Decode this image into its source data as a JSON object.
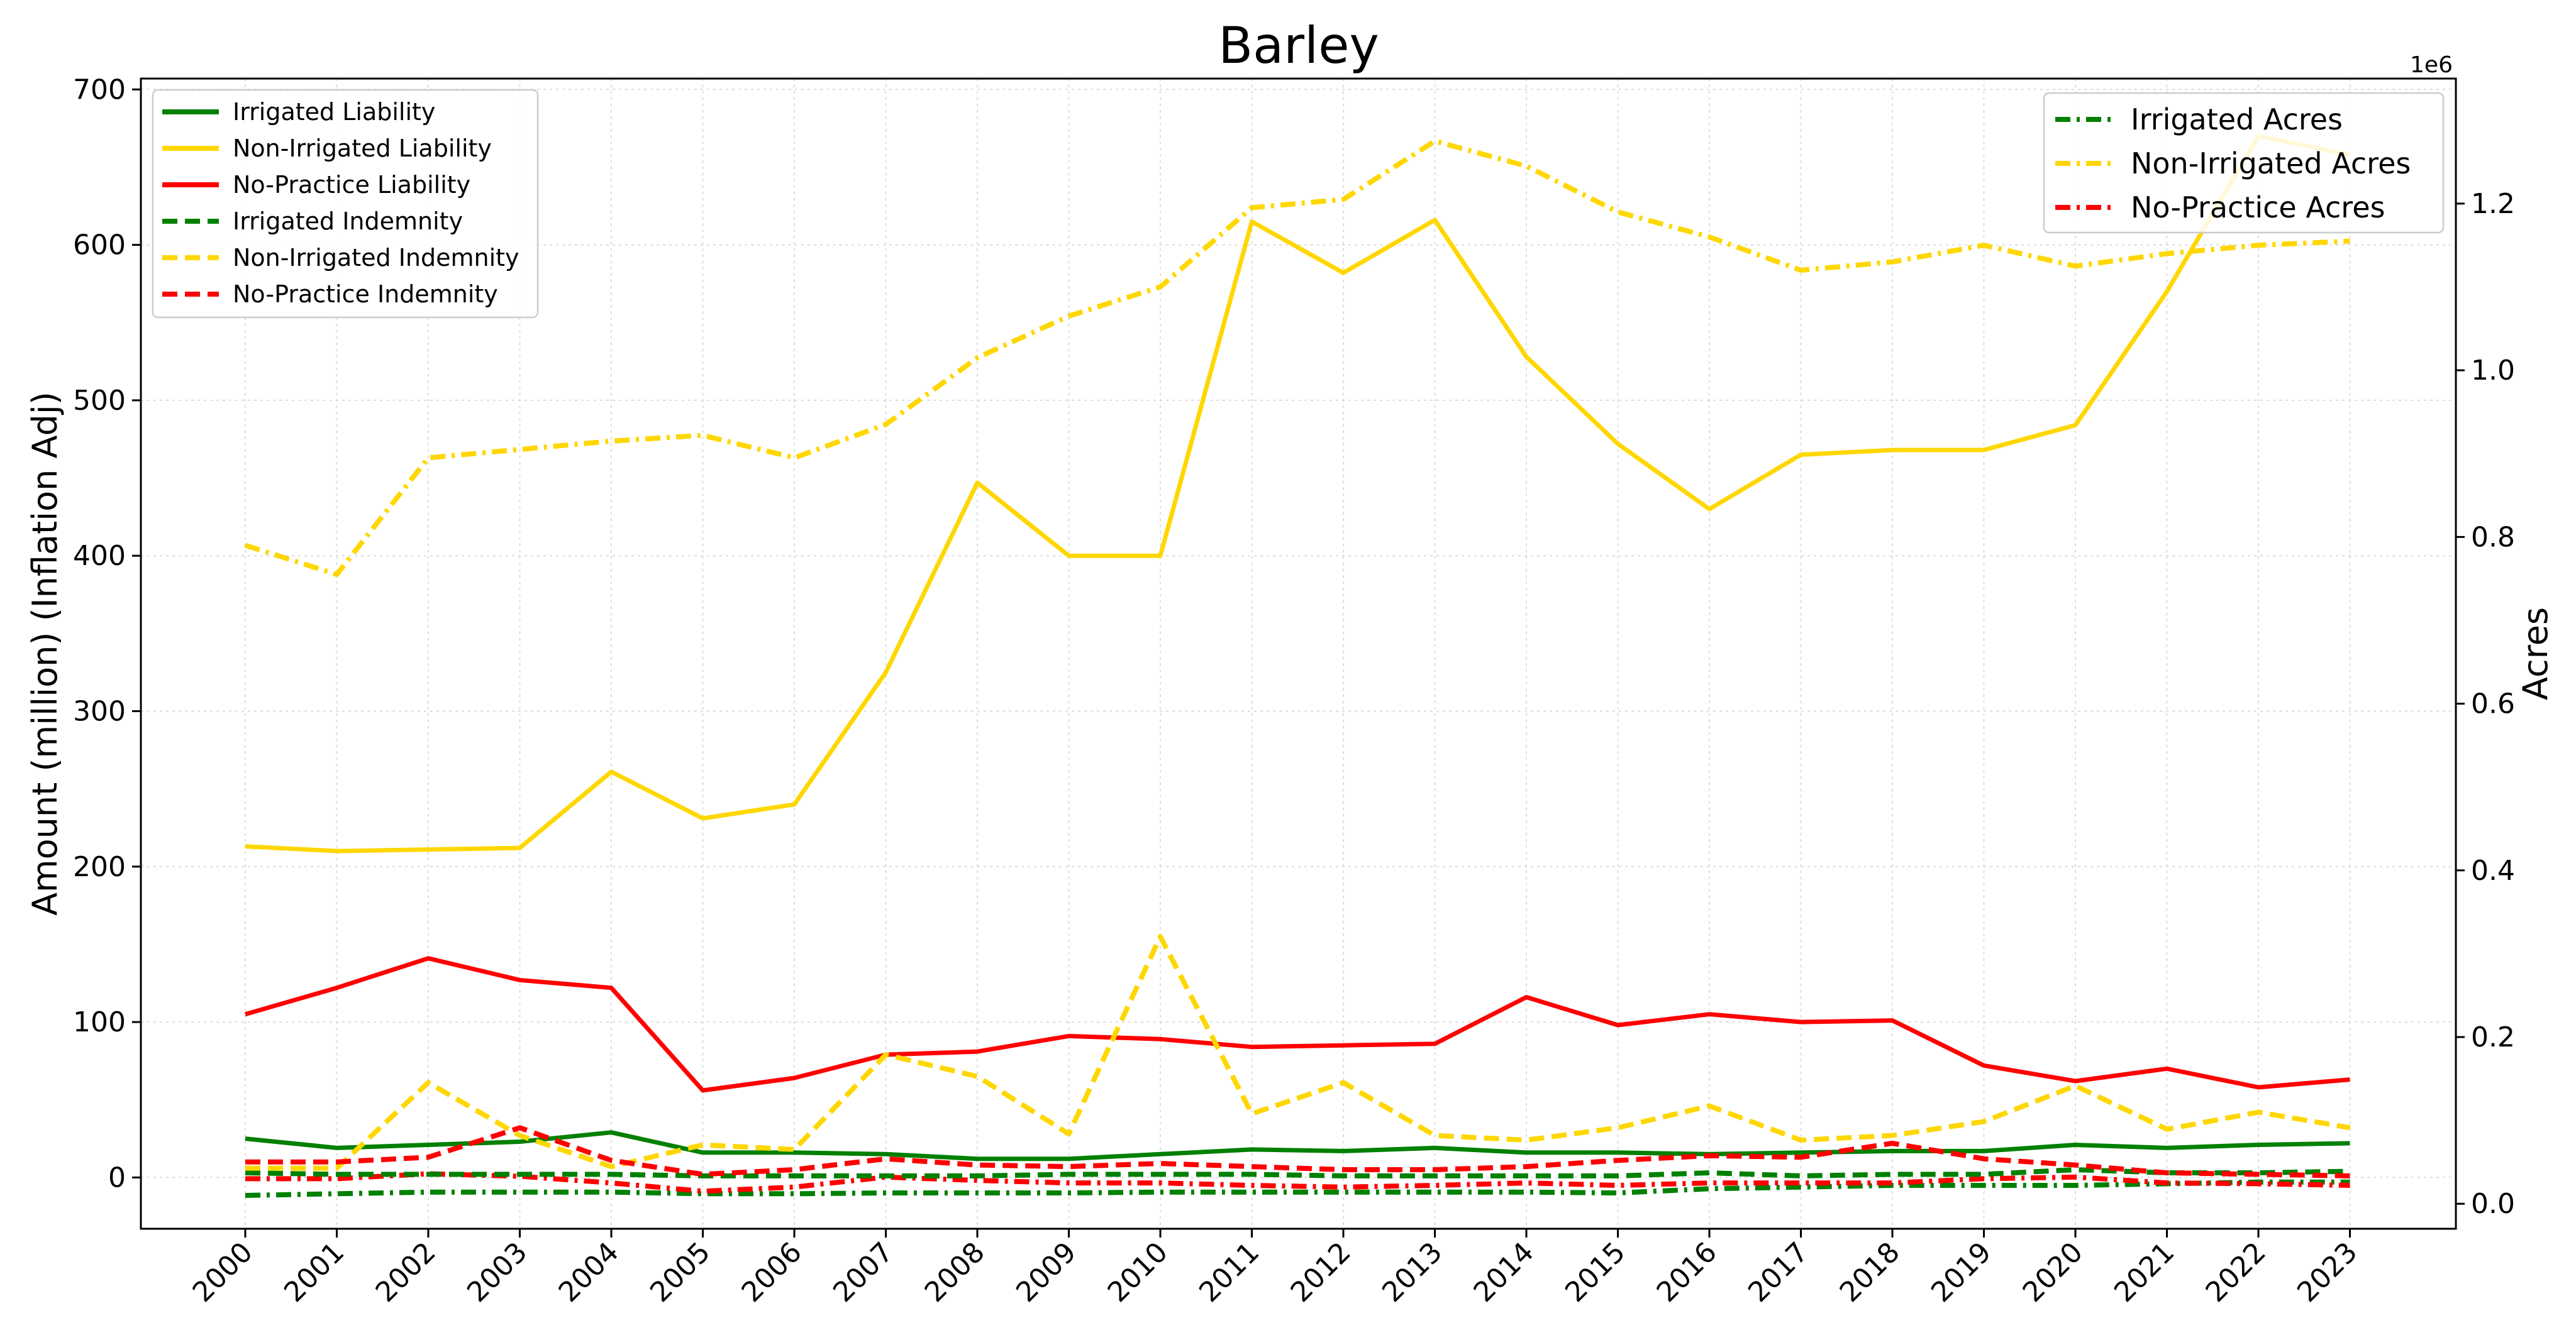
{
  "chart_data": {
    "type": "line",
    "title": "Barley",
    "xlabel": "",
    "ylabel": "Amount (million) (Inflation Adj)",
    "y2label": "Acres",
    "y2_offset_text": "1e6",
    "categories": [
      "2000",
      "2001",
      "2002",
      "2003",
      "2004",
      "2005",
      "2006",
      "2007",
      "2008",
      "2009",
      "2010",
      "2011",
      "2012",
      "2013",
      "2014",
      "2015",
      "2016",
      "2017",
      "2018",
      "2019",
      "2020",
      "2021",
      "2022",
      "2023"
    ],
    "ylim": [
      -33,
      707
    ],
    "y2lim": [
      -0.03,
      1.35
    ],
    "yticks": [
      0,
      100,
      200,
      300,
      400,
      500,
      600,
      700
    ],
    "y2ticks": [
      0.0,
      0.2,
      0.4,
      0.6,
      0.8,
      1.0,
      1.2
    ],
    "y2tick_labels": [
      "0.0",
      "0.2",
      "0.4",
      "0.6",
      "0.8",
      "1.0",
      "1.2"
    ],
    "grid": true,
    "legend_left_position": "upper-left",
    "legend_right_position": "upper-right",
    "series": [
      {
        "name": "Irrigated Liability",
        "axis": "left",
        "color": "#008000",
        "style": "solid",
        "values": [
          25,
          19,
          21,
          23,
          29,
          16,
          16,
          15,
          12,
          12,
          15,
          18,
          17,
          19,
          16,
          16,
          15,
          16,
          17,
          17,
          21,
          19,
          21,
          22
        ]
      },
      {
        "name": "Non-Irrigated Liability",
        "axis": "left",
        "color": "#FFD700",
        "style": "solid",
        "values": [
          213,
          210,
          211,
          212,
          261,
          231,
          240,
          325,
          447,
          400,
          400,
          615,
          582,
          616,
          528,
          472,
          430,
          465,
          468,
          468,
          484,
          570,
          670,
          658
        ]
      },
      {
        "name": "No-Practice Liability",
        "axis": "left",
        "color": "#FF0000",
        "style": "solid",
        "values": [
          105,
          122,
          141,
          127,
          122,
          56,
          64,
          79,
          81,
          91,
          89,
          84,
          85,
          86,
          116,
          98,
          105,
          100,
          101,
          72,
          62,
          70,
          58,
          63
        ]
      },
      {
        "name": "Irrigated Indemnity",
        "axis": "left",
        "color": "#008000",
        "style": "dashed",
        "values": [
          3,
          2,
          2,
          2,
          2,
          1,
          1,
          1,
          1,
          2,
          2,
          2,
          1,
          1,
          1,
          1,
          3,
          1,
          2,
          2,
          5,
          3,
          3,
          4
        ]
      },
      {
        "name": "Non-Irrigated Indemnity",
        "axis": "left",
        "color": "#FFD700",
        "style": "dashed",
        "values": [
          6,
          6,
          61,
          27,
          7,
          21,
          18,
          79,
          65,
          28,
          155,
          41,
          61,
          27,
          24,
          32,
          46,
          24,
          27,
          36,
          59,
          31,
          42,
          32
        ]
      },
      {
        "name": "No-Practice Indemnity",
        "axis": "left",
        "color": "#FF0000",
        "style": "dashed",
        "values": [
          10,
          10,
          13,
          32,
          11,
          2,
          5,
          12,
          8,
          7,
          9,
          7,
          5,
          5,
          7,
          11,
          14,
          13,
          22,
          12,
          8,
          3,
          2,
          1
        ]
      },
      {
        "name": "Irrigated Acres",
        "axis": "right",
        "color": "#008000",
        "style": "dashdot",
        "values": [
          0.01,
          0.012,
          0.014,
          0.014,
          0.014,
          0.012,
          0.012,
          0.013,
          0.013,
          0.013,
          0.014,
          0.014,
          0.014,
          0.014,
          0.014,
          0.013,
          0.018,
          0.02,
          0.022,
          0.022,
          0.022,
          0.024,
          0.026,
          0.026
        ]
      },
      {
        "name": "Non-Irrigated Acres",
        "axis": "right",
        "color": "#FFD700",
        "style": "dashdot",
        "values": [
          0.79,
          0.755,
          0.895,
          0.905,
          0.915,
          0.922,
          0.895,
          0.935,
          1.015,
          1.065,
          1.1,
          1.195,
          1.205,
          1.275,
          1.245,
          1.19,
          1.16,
          1.12,
          1.13,
          1.15,
          1.125,
          1.14,
          1.15,
          1.155
        ]
      },
      {
        "name": "No-Practice Acres",
        "axis": "right",
        "color": "#FF0000",
        "style": "dashdot",
        "values": [
          0.03,
          0.03,
          0.036,
          0.033,
          0.025,
          0.015,
          0.02,
          0.032,
          0.028,
          0.025,
          0.025,
          0.022,
          0.02,
          0.022,
          0.025,
          0.022,
          0.025,
          0.025,
          0.025,
          0.03,
          0.032,
          0.025,
          0.024,
          0.022
        ]
      }
    ]
  }
}
